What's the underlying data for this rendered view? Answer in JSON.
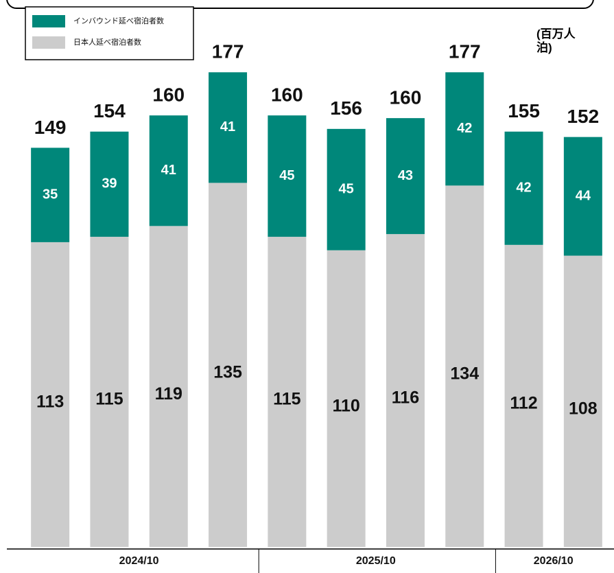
{
  "chart_data": {
    "type": "stacked_bar",
    "unit": "(百万人泊)",
    "categories": [
      null,
      null,
      null,
      null,
      null,
      null,
      null,
      null,
      null,
      null
    ],
    "category_groups": [
      {
        "label": "2024/10",
        "size": 4
      },
      {
        "label": "2025/10",
        "size": 4
      },
      {
        "label": "2026/10",
        "size": 2
      }
    ],
    "series": [
      {
        "name": "日本人延べ宿泊者数",
        "color": "#cccccc",
        "values": [
          113,
          115,
          119,
          135,
          115,
          110,
          116,
          134,
          112,
          108
        ]
      },
      {
        "name": "インバウンド延べ宿泊者数",
        "color": "#00877a",
        "values": [
          35,
          39,
          41,
          41,
          45,
          45,
          43,
          42,
          42,
          44
        ]
      }
    ],
    "totals": [
      149,
      154,
      160,
      177,
      160,
      156,
      160,
      177,
      155,
      152
    ],
    "ylim": [
      0,
      200
    ],
    "legend": "top-left"
  }
}
